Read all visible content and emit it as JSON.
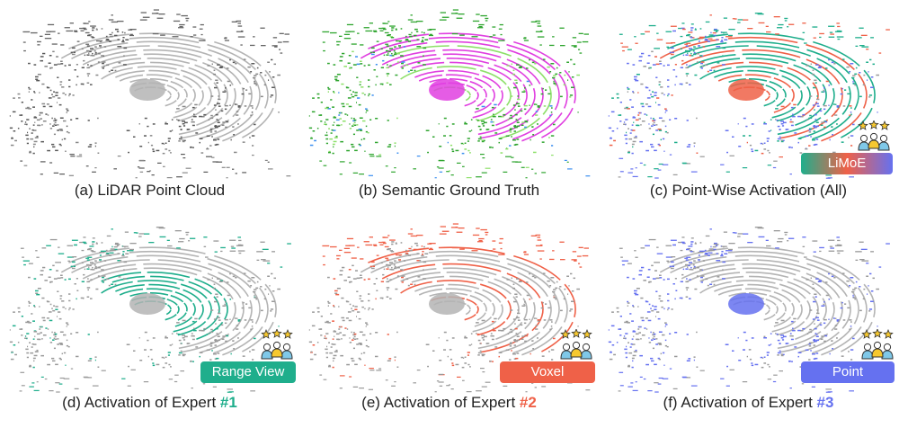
{
  "colors": {
    "gray_dark": "#5a5a5a",
    "gray_light": "#b4b4b4",
    "expert1": "#1fae8c",
    "expert2": "#ef6148",
    "expert3": "#6571f0",
    "gt_green": "#2fa52f",
    "gt_magenta": "#e040e0",
    "gt_lightgreen": "#8ee06a",
    "gt_blue": "#3b8ff0"
  },
  "icons": {
    "team": "team-experts-icon"
  },
  "panels": [
    {
      "id": "a",
      "caption": "(a) LiDAR Point Cloud",
      "mode": "raw"
    },
    {
      "id": "b",
      "caption": "(b) Semantic Ground Truth",
      "mode": "gt"
    },
    {
      "id": "c",
      "caption": "(c) Point-Wise Activation (All)",
      "mode": "all",
      "badge": "LiMoE"
    },
    {
      "id": "d",
      "caption_prefix": "(d) Activation of Expert ",
      "caption_num": "#1",
      "mode": "e1",
      "badge": "Range View"
    },
    {
      "id": "e",
      "caption_prefix": "(e) Activation of Expert ",
      "caption_num": "#2",
      "mode": "e2",
      "badge": "Voxel"
    },
    {
      "id": "f",
      "caption_prefix": "(f) Activation of Expert ",
      "caption_num": "#3",
      "mode": "e3",
      "badge": "Point"
    }
  ]
}
